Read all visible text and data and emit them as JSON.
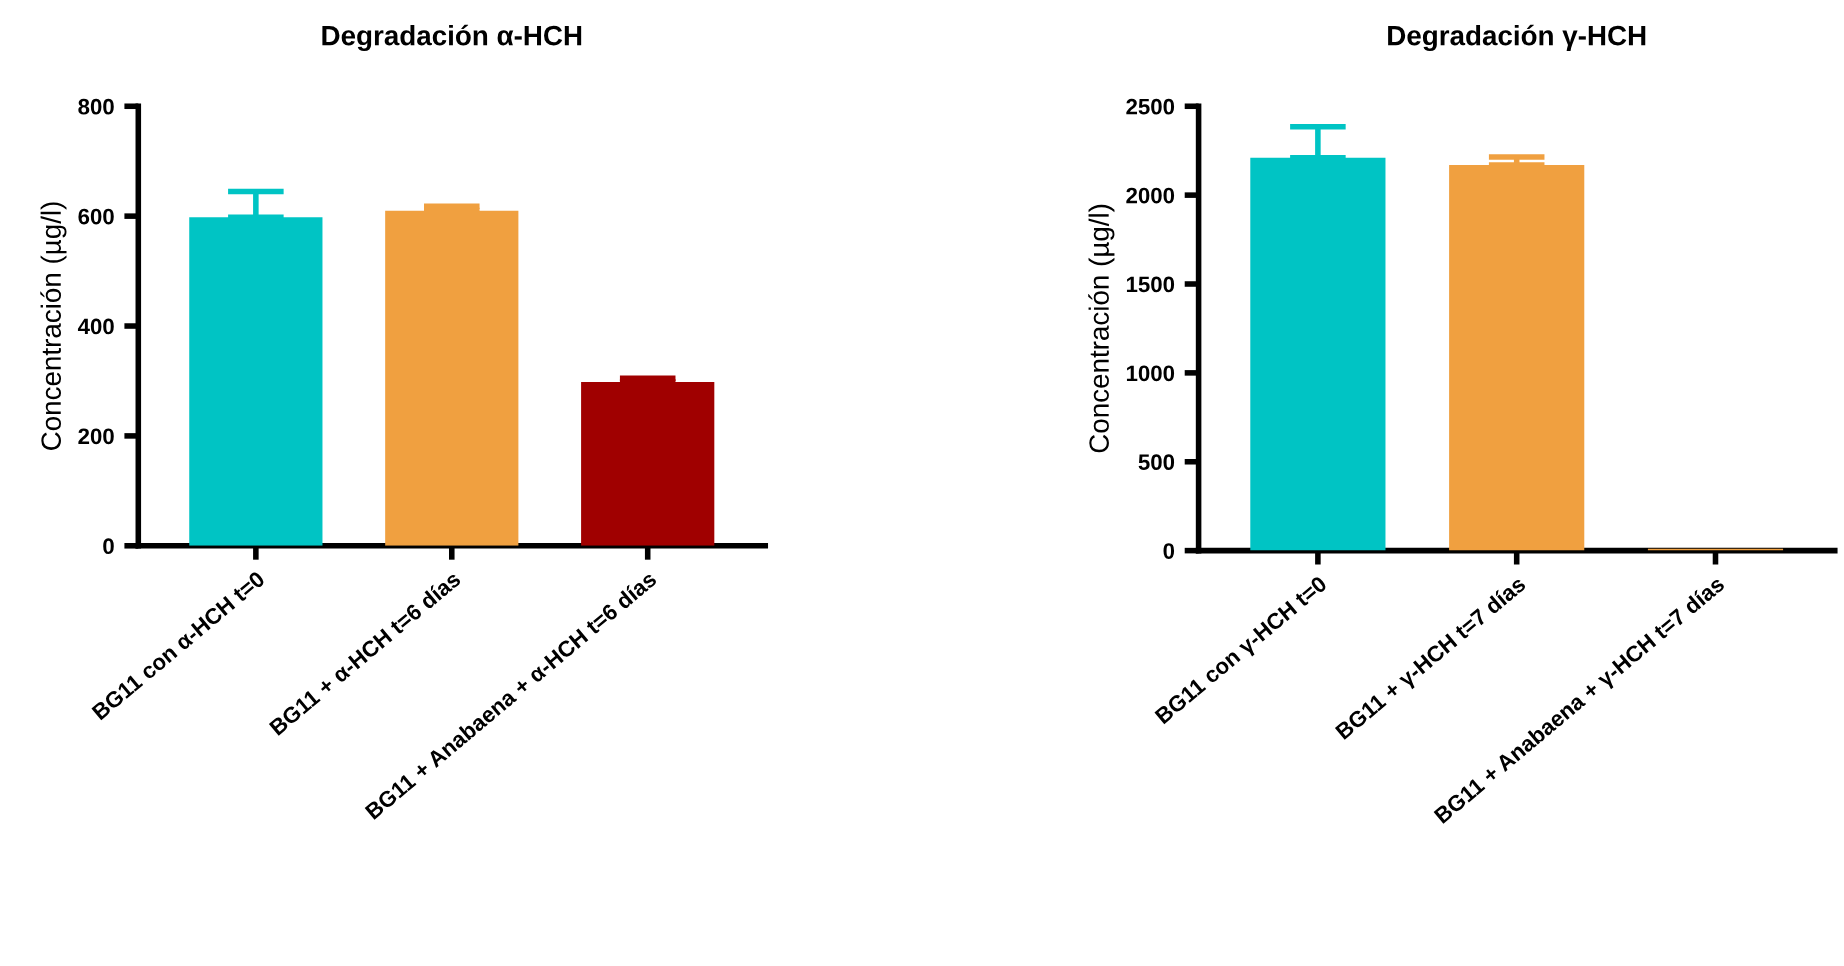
{
  "chart_data": [
    {
      "type": "bar",
      "title": "Degradación α-HCH",
      "ylabel": "Concentración (µg/l)",
      "categories": [
        "BG11 con α-HCH t=0",
        "BG11 + α-HCH t=6 días",
        "BG11 + Anabaena + α-HCH t=6 días"
      ],
      "values": [
        598,
        610,
        298
      ],
      "colors": [
        "#00c4c4",
        "#f0a040",
        "#a00000"
      ],
      "errors": [
        [
          598,
          645
        ],
        [
          610,
          618
        ],
        [
          298,
          305
        ]
      ],
      "ylim": [
        0,
        800
      ],
      "yticks": [
        0,
        200,
        400,
        600,
        800
      ],
      "grid": false,
      "legend": false
    },
    {
      "type": "bar",
      "title": "Degradación γ-HCH",
      "ylabel": "Concentración (µg/l)",
      "categories": [
        "BG11 con γ-HCH t=0",
        "BG11 + γ-HCH t=7 días",
        "BG11 + Anabaena + γ-HCH t=7 días"
      ],
      "values": [
        2210,
        2170,
        10
      ],
      "colors": [
        "#00c4c4",
        "#f0a040",
        "#f0a040"
      ],
      "errors": [
        [
          2210,
          2385
        ],
        [
          2170,
          2215
        ],
        null
      ],
      "ylim": [
        0,
        2500
      ],
      "yticks": [
        0,
        500,
        1000,
        1500,
        2000,
        2500
      ],
      "grid": false,
      "legend": false
    }
  ]
}
